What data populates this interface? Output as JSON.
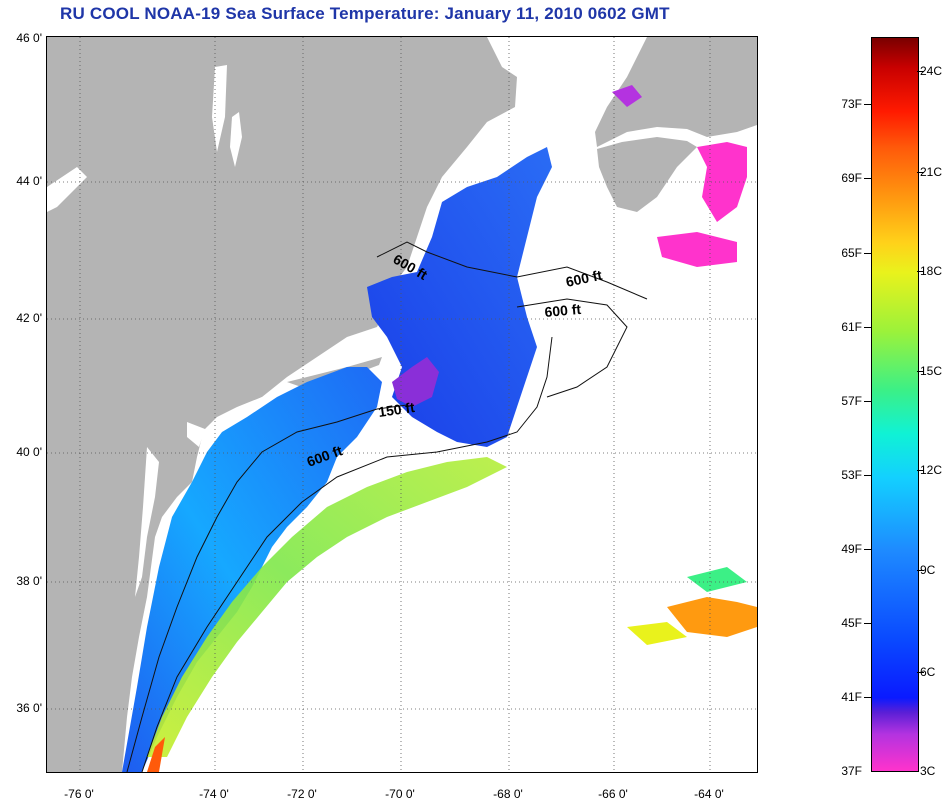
{
  "title": "RU COOL  NOAA-19  Sea Surface Temperature:  January 11, 2010 0602 GMT",
  "map": {
    "lat_labels": [
      "46 0'",
      "44 0'",
      "42 0'",
      "40 0'",
      "38 0'",
      "36 0'"
    ],
    "lon_labels": [
      "-76 0'",
      "-74 0'",
      "-72 0'",
      "-70 0'",
      "-68 0'",
      "-66 0'",
      "-64 0'"
    ],
    "isobaths": [
      {
        "label": "600 ft",
        "placement": "gulf-of-maine-west"
      },
      {
        "label": "600 ft",
        "placement": "georges-north"
      },
      {
        "label": "600 ft",
        "placement": "georges-east"
      },
      {
        "label": "150 ft",
        "placement": "nantucket-shoals"
      },
      {
        "label": "600 ft",
        "placement": "shelf-break"
      }
    ],
    "colors": {
      "land": "#b4b4b4",
      "cloud": "#ffffff",
      "ocean_cold": "#2060f0"
    }
  },
  "colorbar": {
    "fahrenheit_labels": [
      "73F",
      "69F",
      "65F",
      "61F",
      "57F",
      "53F",
      "49F",
      "45F",
      "41F",
      "37F"
    ],
    "celsius_labels": [
      "24C",
      "21C",
      "18C",
      "15C",
      "12C",
      "9C",
      "6C",
      "3C"
    ]
  }
}
